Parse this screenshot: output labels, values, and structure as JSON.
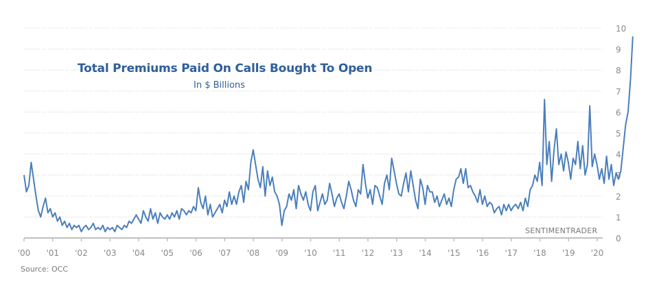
{
  "chart_data": {
    "type": "line",
    "title": "Total Premiums Paid On Calls Bought To Open",
    "subtitle": "In $ Billions",
    "xlabel": "",
    "ylabel": "",
    "source": "Source: OCC",
    "watermark": "SENTIMENTRADER",
    "ylim": [
      0,
      10
    ],
    "y_ticks": [
      "0",
      "1",
      "2",
      "3",
      "4",
      "5",
      "6",
      "7",
      "8",
      "9",
      "10"
    ],
    "y_axis_side": "right",
    "grid": true,
    "x_range": [
      2000.0,
      2020.2
    ],
    "x_ticks": [
      {
        "year": 2000,
        "label": "'00"
      },
      {
        "year": 2001,
        "label": "'01"
      },
      {
        "year": 2002,
        "label": "'02"
      },
      {
        "year": 2003,
        "label": "'03"
      },
      {
        "year": 2004,
        "label": "'04"
      },
      {
        "year": 2005,
        "label": "'05"
      },
      {
        "year": 2006,
        "label": "'06"
      },
      {
        "year": 2007,
        "label": "'07"
      },
      {
        "year": 2008,
        "label": "'08"
      },
      {
        "year": 2009,
        "label": "'09"
      },
      {
        "year": 2010,
        "label": "'10"
      },
      {
        "year": 2011,
        "label": "'11"
      },
      {
        "year": 2012,
        "label": "'12"
      },
      {
        "year": 2013,
        "label": "'13"
      },
      {
        "year": 2014,
        "label": "'14"
      },
      {
        "year": 2015,
        "label": "'15"
      },
      {
        "year": 2016,
        "label": "'16"
      },
      {
        "year": 2017,
        "label": "'17"
      },
      {
        "year": 2018,
        "label": "'18"
      },
      {
        "year": 2019,
        "label": "'19"
      },
      {
        "year": 2020,
        "label": "'20"
      }
    ],
    "series": [
      {
        "name": "Total Premiums Paid On Calls Bought To Open",
        "color": "#4a7ebb",
        "x_start": 2000.0,
        "x_step": 0.0833,
        "values": [
          3.0,
          2.2,
          2.5,
          3.6,
          2.8,
          2.0,
          1.3,
          1.0,
          1.5,
          1.9,
          1.2,
          1.4,
          1.0,
          1.2,
          0.8,
          1.0,
          0.6,
          0.8,
          0.5,
          0.7,
          0.4,
          0.6,
          0.5,
          0.6,
          0.3,
          0.5,
          0.6,
          0.4,
          0.5,
          0.7,
          0.4,
          0.5,
          0.4,
          0.6,
          0.3,
          0.5,
          0.4,
          0.5,
          0.3,
          0.6,
          0.5,
          0.4,
          0.6,
          0.5,
          0.8,
          0.7,
          0.9,
          1.1,
          0.9,
          0.7,
          1.3,
          1.0,
          0.8,
          1.4,
          0.9,
          1.2,
          0.7,
          1.2,
          1.0,
          0.9,
          1.1,
          0.9,
          1.2,
          1.0,
          1.3,
          0.9,
          1.4,
          1.3,
          1.1,
          1.3,
          1.2,
          1.5,
          1.3,
          2.4,
          1.7,
          1.4,
          2.0,
          1.1,
          1.6,
          1.0,
          1.2,
          1.4,
          1.6,
          1.2,
          1.8,
          1.5,
          2.2,
          1.6,
          2.0,
          1.6,
          2.2,
          2.5,
          1.7,
          2.7,
          2.3,
          3.6,
          4.2,
          3.5,
          2.8,
          2.4,
          3.4,
          2.0,
          3.2,
          2.5,
          2.9,
          2.2,
          2.0,
          1.6,
          0.6,
          1.3,
          1.5,
          2.1,
          1.8,
          2.3,
          1.4,
          2.5,
          2.1,
          1.8,
          2.2,
          1.6,
          1.3,
          2.2,
          2.5,
          1.3,
          1.7,
          2.1,
          1.6,
          1.8,
          2.6,
          2.1,
          1.5,
          1.9,
          2.1,
          1.7,
          1.4,
          2.0,
          2.7,
          2.3,
          1.8,
          1.5,
          2.3,
          2.1,
          3.5,
          2.6,
          1.9,
          2.3,
          1.6,
          2.5,
          2.4,
          2.0,
          1.6,
          2.6,
          3.0,
          2.3,
          3.8,
          3.2,
          2.6,
          2.1,
          2.0,
          2.6,
          3.1,
          2.2,
          3.2,
          2.5,
          1.8,
          1.4,
          2.8,
          2.4,
          1.6,
          2.5,
          2.2,
          2.2,
          1.7,
          2.0,
          1.5,
          1.8,
          2.1,
          1.6,
          1.9,
          1.5,
          2.3,
          2.8,
          2.9,
          3.3,
          2.6,
          3.3,
          2.4,
          2.5,
          2.2,
          2.0,
          1.7,
          2.3,
          1.6,
          2.0,
          1.5,
          1.7,
          1.6,
          1.2,
          1.4,
          1.5,
          1.1,
          1.6,
          1.3,
          1.6,
          1.3,
          1.5,
          1.6,
          1.4,
          1.7,
          1.3,
          1.9,
          1.5,
          2.3,
          2.5,
          3.0,
          2.7,
          3.6,
          2.5,
          6.6,
          3.5,
          4.6,
          2.7,
          4.2,
          5.2,
          3.5,
          4.0,
          3.2,
          4.1,
          3.6,
          2.8,
          3.8,
          3.5,
          4.6,
          3.3,
          4.4,
          3.0,
          3.5,
          6.3,
          3.4,
          4.0,
          3.5,
          2.8,
          3.3,
          2.6,
          3.9,
          2.8,
          3.5,
          2.5,
          3.1,
          2.8,
          3.2,
          4.3,
          5.4,
          6.0,
          7.5,
          9.6
        ]
      }
    ]
  }
}
